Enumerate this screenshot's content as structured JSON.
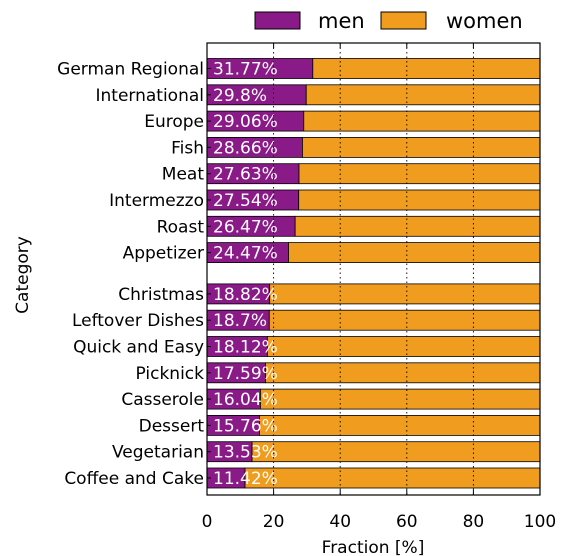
{
  "chart_data": {
    "type": "bar",
    "orientation": "horizontal",
    "stacked": true,
    "xlabel": "Fraction [%]",
    "ylabel": "Category",
    "xlim": [
      0,
      100
    ],
    "xticks": [
      0,
      20,
      40,
      60,
      80,
      100
    ],
    "grid": "vertical dotted",
    "legend_position": "top",
    "categories": [
      "German Regional",
      "International",
      "Europe",
      "Fish",
      "Meat",
      "Intermezzo",
      "Roast",
      "Appetizer",
      "Christmas",
      "Leftover Dishes",
      "Quick and Easy",
      "Picknick",
      "Casserole",
      "Dessert",
      "Vegetarian",
      "Coffee and Cake"
    ],
    "group_break_after_index": 7,
    "labels": [
      "31.77%",
      "29.8%",
      "29.06%",
      "28.66%",
      "27.63%",
      "27.54%",
      "26.47%",
      "24.47%",
      "18.82%",
      "18.7%",
      "18.12%",
      "17.59%",
      "16.04%",
      "15.76%",
      "13.53%",
      "11.42%"
    ],
    "series": [
      {
        "name": "men",
        "color": "#8b1a89",
        "values": [
          31.77,
          29.8,
          29.06,
          28.66,
          27.63,
          27.54,
          26.47,
          24.47,
          18.82,
          18.7,
          18.12,
          17.59,
          16.04,
          15.76,
          13.53,
          11.42
        ]
      },
      {
        "name": "women",
        "color": "#f09c1f",
        "values": [
          68.23,
          70.2,
          70.94,
          71.34,
          72.37,
          72.46,
          73.53,
          75.53,
          81.18,
          81.3,
          81.88,
          82.41,
          83.96,
          84.24,
          86.47,
          88.58
        ]
      }
    ]
  }
}
